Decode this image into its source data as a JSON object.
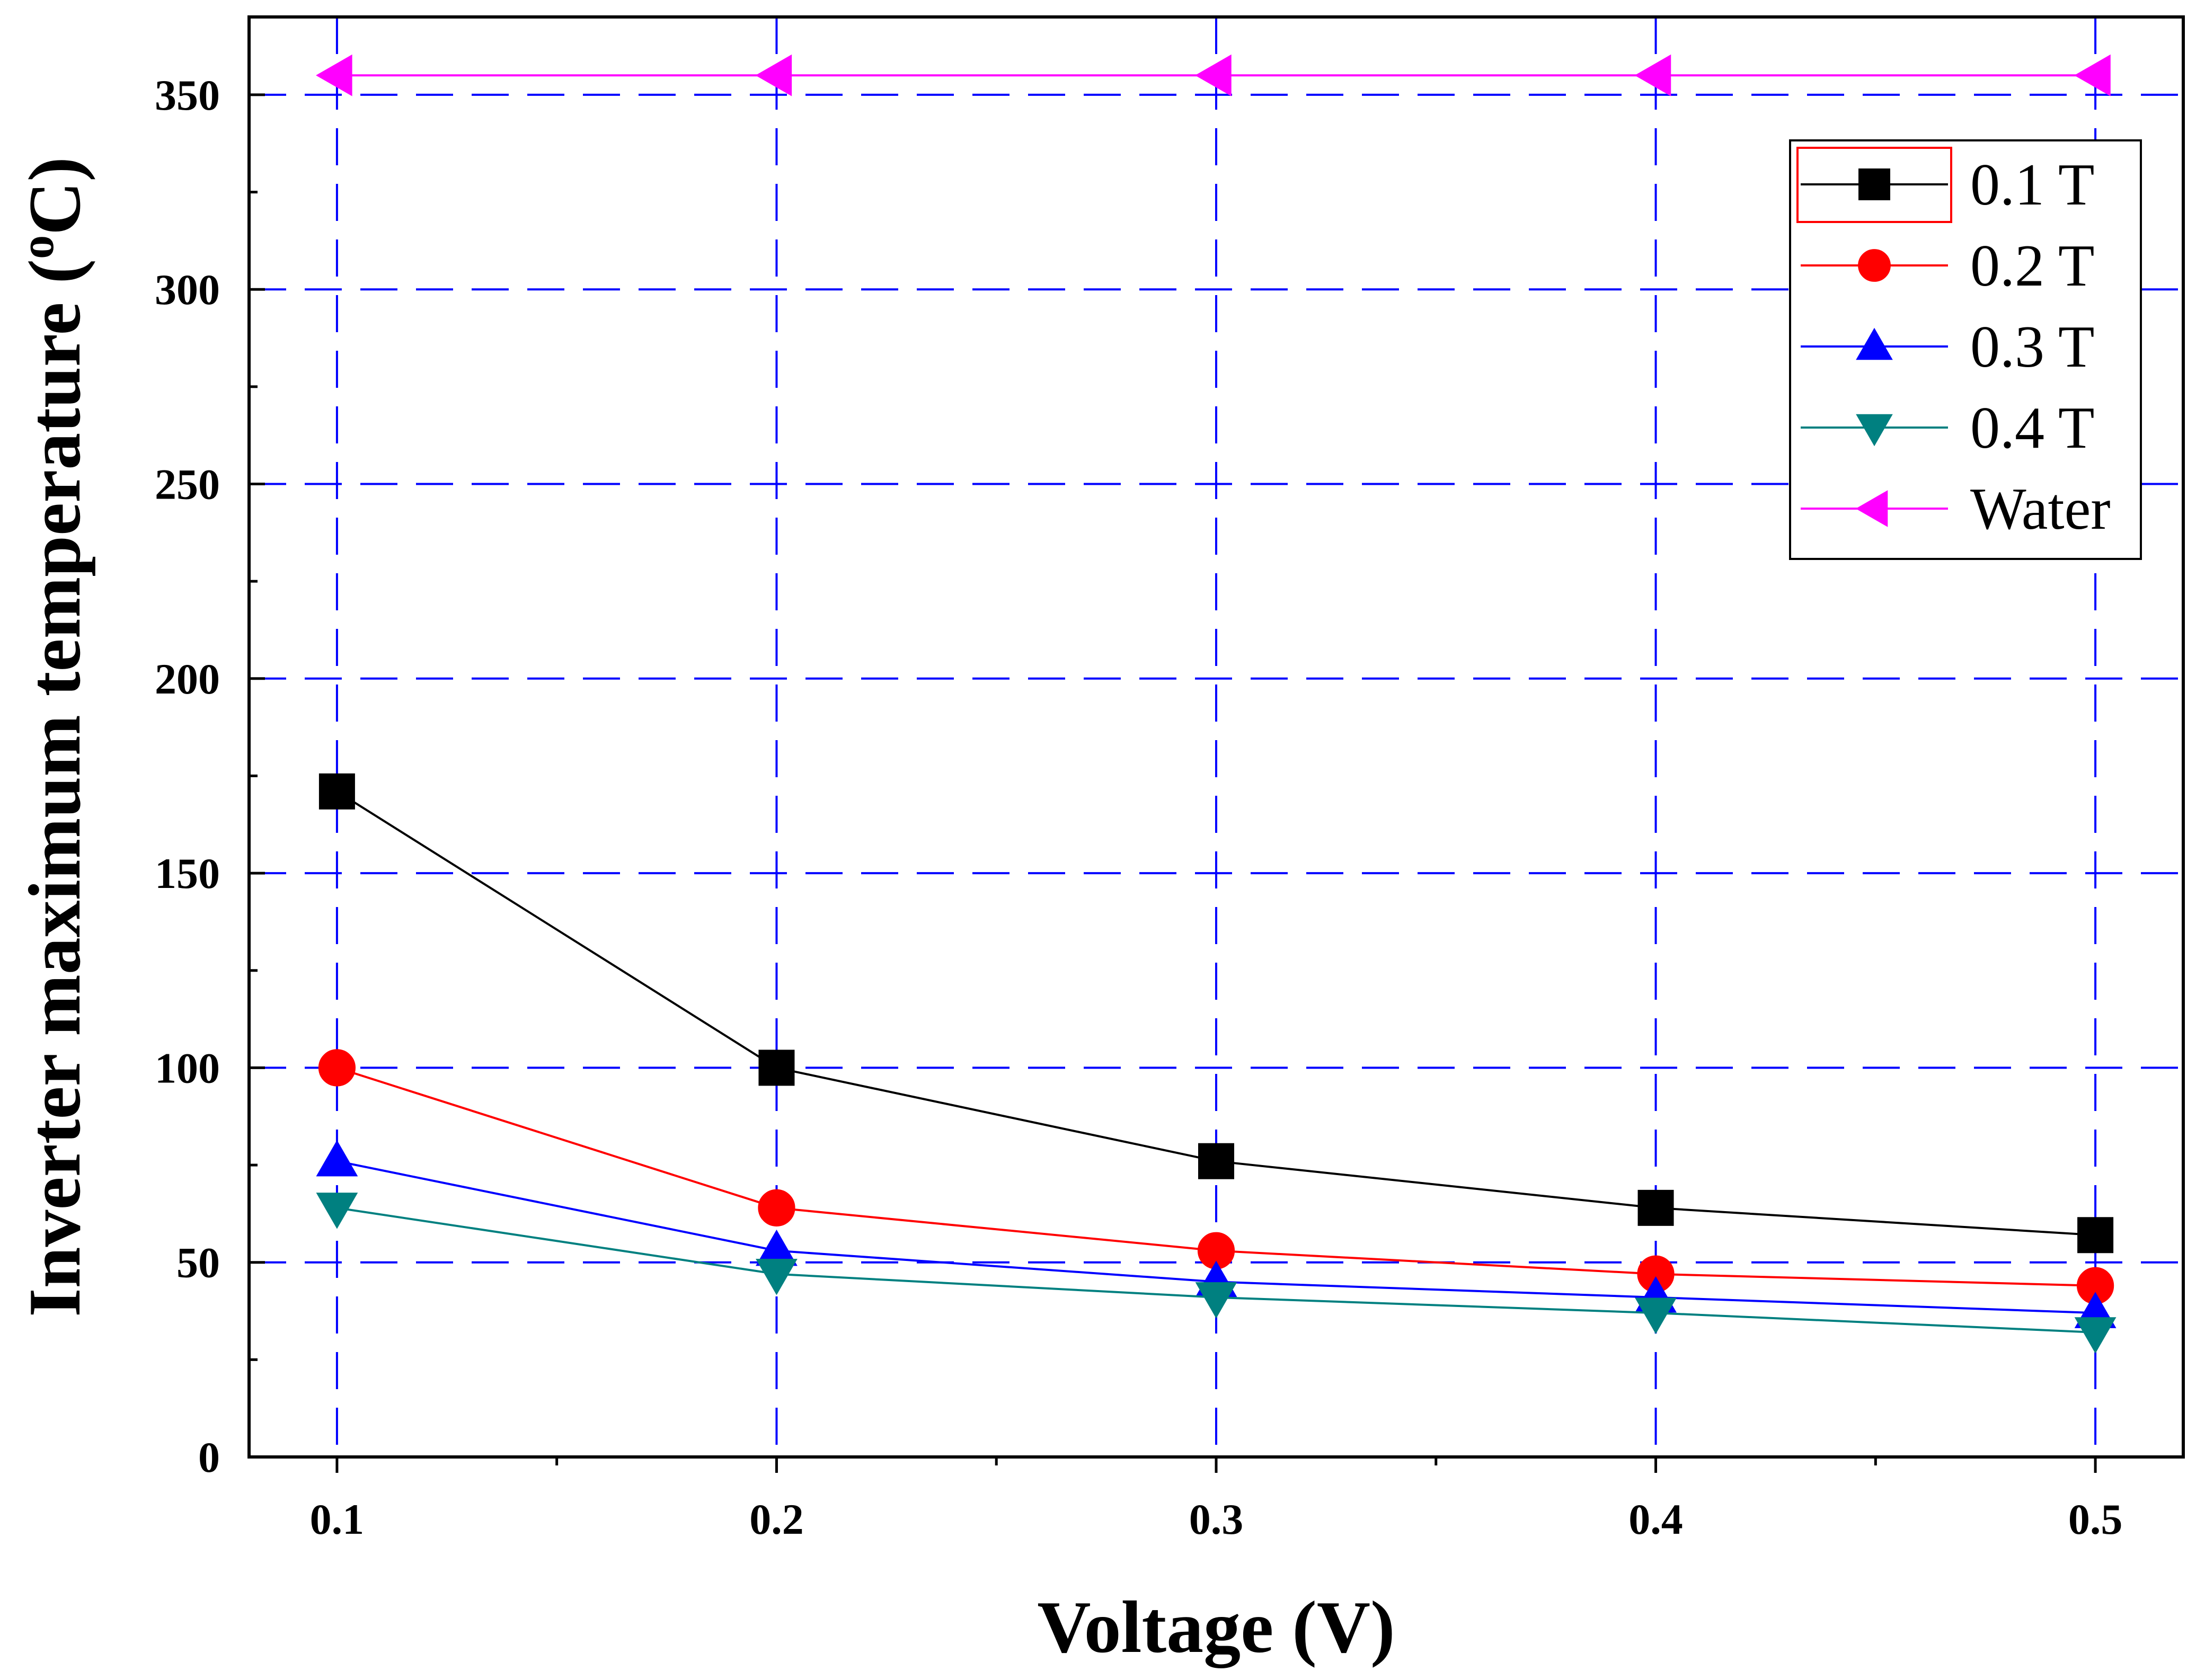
{
  "chart_data": {
    "type": "line",
    "title": "",
    "xlabel": "Voltage (V)",
    "ylabel_main": "Inverter maximum temperature (",
    "ylabel_sup": "o",
    "ylabel_end": "C)",
    "x": [
      0.1,
      0.2,
      0.3,
      0.4,
      0.5
    ],
    "x_tick_labels": [
      "0.1",
      "0.2",
      "0.3",
      "0.4",
      "0.5"
    ],
    "xlim": [
      0.08,
      0.52
    ],
    "y_ticks": [
      0,
      50,
      100,
      150,
      200,
      250,
      300,
      350
    ],
    "y_tick_labels": [
      "0",
      "50",
      "100",
      "150",
      "200",
      "250",
      "300",
      "350"
    ],
    "ylim": [
      0,
      370
    ],
    "grid": true,
    "legend_position": "top-right",
    "series": [
      {
        "name": "0.1 T",
        "color": "#000000",
        "marker": "square",
        "values": [
          171,
          100,
          76,
          64,
          57
        ]
      },
      {
        "name": "0.2 T",
        "color": "#ff0000",
        "marker": "circle",
        "values": [
          100,
          64,
          53,
          47,
          44
        ]
      },
      {
        "name": "0.3 T",
        "color": "#0000ff",
        "marker": "triangle-up",
        "values": [
          76,
          53,
          45,
          41,
          37
        ]
      },
      {
        "name": "0.4 T",
        "color": "#008080",
        "marker": "triangle-down",
        "values": [
          64,
          47,
          41,
          37,
          32
        ]
      },
      {
        "name": "Water",
        "color": "#ff00ff",
        "marker": "triangle-left",
        "values": [
          355,
          355,
          355,
          355,
          355
        ]
      }
    ]
  }
}
